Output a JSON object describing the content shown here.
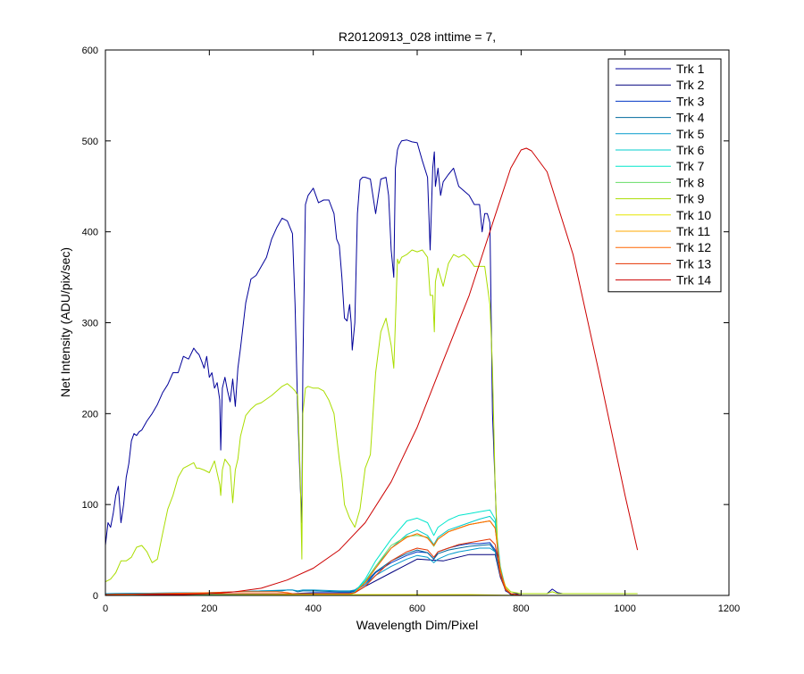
{
  "chart_data": {
    "type": "line",
    "title": "R20120913_028 inttime = 7,",
    "xlabel": "Wavelength Dim/Pixel",
    "ylabel": "Net Intensity (ADU/pix/sec)",
    "xlim": [
      0,
      1200
    ],
    "ylim": [
      0,
      600
    ],
    "xticks": [
      0,
      200,
      400,
      600,
      800,
      1000,
      1200
    ],
    "yticks": [
      0,
      100,
      200,
      300,
      400,
      500,
      600
    ],
    "legend_position": "top-right",
    "series": [
      {
        "name": "Trk 1",
        "color": "#000099",
        "x": [
          0,
          5,
          10,
          15,
          20,
          25,
          30,
          35,
          40,
          45,
          50,
          55,
          60,
          65,
          70,
          80,
          90,
          100,
          110,
          120,
          130,
          140,
          150,
          160,
          170,
          175,
          180,
          185,
          190,
          195,
          200,
          205,
          210,
          215,
          220,
          222,
          225,
          230,
          235,
          240,
          245,
          250,
          255,
          260,
          270,
          280,
          290,
          300,
          310,
          320,
          330,
          340,
          350,
          360,
          365,
          370,
          375,
          378,
          380,
          385,
          390,
          400,
          410,
          420,
          430,
          440,
          445,
          450,
          455,
          460,
          465,
          470,
          473,
          475,
          480,
          485,
          490,
          495,
          500,
          510,
          520,
          530,
          540,
          545,
          550,
          555,
          558,
          562,
          565,
          570,
          580,
          590,
          600,
          610,
          620,
          625,
          630,
          633,
          635,
          640,
          645,
          650,
          660,
          670,
          680,
          690,
          700,
          710,
          720,
          725,
          730,
          735,
          740,
          745,
          750,
          755,
          760,
          765,
          770,
          780,
          800,
          820,
          850,
          860,
          870,
          880,
          900,
          950,
          1000,
          1024
        ],
        "y": [
          55,
          80,
          75,
          90,
          110,
          120,
          80,
          100,
          130,
          145,
          170,
          178,
          176,
          180,
          182,
          192,
          200,
          210,
          223,
          232,
          245,
          245,
          263,
          260,
          272,
          268,
          265,
          258,
          250,
          263,
          240,
          245,
          228,
          234,
          215,
          160,
          228,
          240,
          225,
          213,
          238,
          208,
          250,
          272,
          322,
          348,
          352,
          362,
          372,
          392,
          405,
          415,
          412,
          398,
          320,
          205,
          120,
          80,
          250,
          430,
          440,
          448,
          432,
          435,
          435,
          420,
          392,
          385,
          350,
          305,
          302,
          320,
          300,
          270,
          300,
          420,
          457,
          460,
          460,
          458,
          420,
          458,
          460,
          440,
          380,
          350,
          470,
          490,
          495,
          500,
          501,
          499,
          498,
          478,
          460,
          380,
          470,
          488,
          450,
          470,
          440,
          455,
          463,
          470,
          450,
          445,
          440,
          430,
          430,
          400,
          420,
          420,
          410,
          200,
          120,
          40,
          28,
          15,
          5,
          2,
          2,
          2,
          2,
          7,
          3,
          2,
          2,
          2,
          2,
          2
        ]
      },
      {
        "name": "Trk 2",
        "color": "#00007f",
        "x": [
          0,
          200,
          350,
          360,
          400,
          450,
          470,
          480,
          500,
          550,
          600,
          650,
          700,
          750,
          760,
          770,
          780,
          800,
          900,
          1024
        ],
        "y": [
          0,
          1,
          1,
          1,
          2,
          2,
          2,
          3,
          10,
          25,
          40,
          38,
          45,
          45,
          20,
          6,
          1,
          0,
          0,
          0
        ]
      },
      {
        "name": "Trk 3",
        "color": "#0035c4",
        "x": [
          0,
          200,
          350,
          360,
          400,
          450,
          470,
          480,
          500,
          520,
          550,
          580,
          600,
          620,
          632,
          640,
          660,
          680,
          700,
          720,
          740,
          750,
          760,
          770,
          780,
          800,
          900,
          1024
        ],
        "y": [
          2,
          2,
          2,
          2,
          3,
          3,
          3,
          5,
          12,
          25,
          36,
          44,
          48,
          47,
          40,
          48,
          52,
          55,
          57,
          57,
          58,
          50,
          22,
          6,
          2,
          0,
          0,
          0
        ]
      },
      {
        "name": "Trk 4",
        "color": "#00699d",
        "x": [
          0,
          200,
          300,
          340,
          350,
          360,
          370,
          380,
          400,
          450,
          465,
          470,
          480,
          500,
          520,
          550,
          580,
          600,
          620,
          632,
          640,
          660,
          680,
          700,
          720,
          740,
          750,
          760,
          770,
          780,
          800,
          900,
          1024
        ],
        "y": [
          2,
          3,
          5,
          5,
          6,
          6,
          4,
          5,
          5,
          4,
          4,
          4,
          6,
          14,
          26,
          38,
          46,
          50,
          47,
          40,
          46,
          50,
          52,
          54,
          55,
          56,
          48,
          22,
          6,
          2,
          0,
          0,
          0
        ]
      },
      {
        "name": "Trk 5",
        "color": "#0099cc",
        "x": [
          0,
          200,
          300,
          350,
          360,
          370,
          380,
          400,
          450,
          470,
          480,
          500,
          520,
          550,
          580,
          600,
          620,
          632,
          640,
          660,
          680,
          700,
          720,
          740,
          750,
          760,
          770,
          780,
          800,
          900,
          1024
        ],
        "y": [
          2,
          3,
          5,
          6,
          6,
          5,
          6,
          6,
          5,
          5,
          6,
          12,
          22,
          32,
          40,
          44,
          42,
          36,
          40,
          45,
          48,
          50,
          52,
          52,
          48,
          22,
          6,
          2,
          0,
          0,
          0
        ]
      },
      {
        "name": "Trk 6",
        "color": "#00cccc",
        "x": [
          0,
          200,
          350,
          400,
          450,
          470,
          480,
          500,
          520,
          550,
          580,
          600,
          620,
          632,
          640,
          660,
          680,
          700,
          720,
          740,
          750,
          760,
          770,
          780,
          800,
          900,
          1024
        ],
        "y": [
          1,
          2,
          2,
          2,
          2,
          2,
          4,
          16,
          32,
          52,
          67,
          72,
          66,
          56,
          64,
          72,
          76,
          80,
          84,
          87,
          80,
          30,
          8,
          2,
          0,
          0,
          0
        ]
      },
      {
        "name": "Trk 7",
        "color": "#00e5cc",
        "x": [
          0,
          200,
          350,
          400,
          450,
          470,
          480,
          500,
          520,
          550,
          580,
          600,
          620,
          632,
          640,
          660,
          680,
          700,
          720,
          740,
          750,
          760,
          770,
          780,
          800,
          900,
          1024
        ],
        "y": [
          1,
          2,
          2,
          2,
          2,
          2,
          4,
          18,
          38,
          62,
          82,
          85,
          80,
          66,
          75,
          83,
          88,
          90,
          92,
          94,
          84,
          32,
          8,
          2,
          0,
          0,
          0
        ]
      },
      {
        "name": "Trk 8",
        "color": "#66dd66",
        "x": [
          0,
          200,
          350,
          400,
          450,
          470,
          480,
          500,
          520,
          550,
          580,
          600,
          620,
          632,
          640,
          660,
          680,
          700,
          720,
          740,
          750,
          760,
          770,
          780,
          800,
          900,
          1024
        ],
        "y": [
          0,
          1,
          1,
          1,
          1,
          1,
          3,
          15,
          32,
          55,
          65,
          66,
          64,
          54,
          62,
          70,
          74,
          78,
          80,
          82,
          74,
          28,
          8,
          2,
          0,
          0,
          0
        ]
      },
      {
        "name": "Trk 9",
        "color": "#aadd00",
        "x": [
          0,
          10,
          20,
          30,
          40,
          50,
          60,
          70,
          80,
          90,
          100,
          110,
          120,
          130,
          140,
          150,
          160,
          170,
          175,
          180,
          190,
          200,
          210,
          220,
          222,
          225,
          230,
          240,
          245,
          250,
          255,
          260,
          270,
          280,
          290,
          300,
          320,
          340,
          350,
          360,
          365,
          370,
          375,
          378,
          380,
          385,
          390,
          400,
          410,
          420,
          430,
          440,
          445,
          450,
          455,
          460,
          470,
          480,
          490,
          500,
          510,
          520,
          530,
          540,
          550,
          555,
          558,
          562,
          565,
          570,
          580,
          590,
          600,
          610,
          620,
          625,
          630,
          633,
          635,
          640,
          645,
          650,
          660,
          670,
          680,
          690,
          700,
          710,
          720,
          730,
          740,
          745,
          750,
          755,
          760,
          765,
          770,
          780,
          800,
          820,
          850,
          860,
          870,
          880,
          900,
          950,
          1000,
          1024
        ],
        "y": [
          15,
          18,
          25,
          38,
          38,
          42,
          53,
          55,
          48,
          36,
          40,
          68,
          95,
          110,
          130,
          140,
          143,
          146,
          140,
          140,
          138,
          135,
          148,
          122,
          110,
          138,
          150,
          142,
          102,
          138,
          150,
          175,
          198,
          205,
          210,
          212,
          220,
          230,
          233,
          228,
          225,
          220,
          130,
          40,
          200,
          228,
          230,
          228,
          228,
          225,
          215,
          200,
          175,
          150,
          130,
          100,
          85,
          75,
          95,
          140,
          155,
          245,
          290,
          305,
          275,
          250,
          300,
          370,
          365,
          372,
          375,
          380,
          378,
          380,
          372,
          330,
          330,
          290,
          345,
          360,
          350,
          340,
          365,
          375,
          372,
          375,
          370,
          362,
          362,
          362,
          320,
          250,
          120,
          50,
          30,
          18,
          10,
          4,
          2,
          2,
          2,
          4,
          2,
          2,
          2,
          2,
          2,
          2
        ]
      },
      {
        "name": "Trk 10",
        "color": "#e5e500",
        "x": [
          0,
          200,
          400,
          470,
          500,
          600,
          700,
          800,
          1024
        ],
        "y": [
          0,
          0,
          1,
          1,
          1,
          1,
          1,
          0,
          0
        ]
      },
      {
        "name": "Trk 11",
        "color": "#ffaa00",
        "x": [
          0,
          200,
          350,
          400,
          450,
          470,
          480,
          500,
          520,
          550,
          580,
          600,
          620,
          632,
          640,
          660,
          680,
          700,
          720,
          740,
          750,
          760,
          770,
          780,
          800,
          900,
          1024
        ],
        "y": [
          1,
          2,
          2,
          2,
          2,
          2,
          3,
          14,
          30,
          52,
          64,
          68,
          63,
          55,
          62,
          70,
          74,
          78,
          80,
          82,
          74,
          28,
          8,
          2,
          0,
          0,
          0
        ]
      },
      {
        "name": "Trk 12",
        "color": "#ff6600",
        "x": [
          0,
          100,
          200,
          250,
          300,
          330,
          350,
          360,
          400,
          450,
          470,
          480,
          500,
          520,
          550,
          580,
          600,
          620,
          632,
          640,
          660,
          680,
          700,
          720,
          740,
          750,
          760,
          770,
          780,
          800,
          900,
          1024
        ],
        "y": [
          1,
          2,
          3,
          4,
          4,
          4,
          3,
          2,
          2,
          2,
          2,
          3,
          14,
          30,
          52,
          64,
          68,
          63,
          55,
          62,
          70,
          74,
          78,
          80,
          82,
          74,
          28,
          8,
          2,
          0,
          0,
          0
        ]
      },
      {
        "name": "Trk 13",
        "color": "#e53300",
        "x": [
          0,
          200,
          350,
          400,
          450,
          470,
          480,
          500,
          520,
          550,
          580,
          600,
          620,
          632,
          640,
          660,
          680,
          700,
          720,
          740,
          750,
          760,
          770,
          780,
          800,
          900,
          1024
        ],
        "y": [
          1,
          2,
          2,
          2,
          2,
          2,
          3,
          10,
          22,
          38,
          48,
          52,
          50,
          42,
          48,
          52,
          56,
          58,
          60,
          62,
          56,
          22,
          6,
          2,
          0,
          0,
          0
        ]
      },
      {
        "name": "Trk 14",
        "color": "#cc0000",
        "x": [
          0,
          50,
          100,
          150,
          200,
          250,
          300,
          350,
          400,
          450,
          500,
          550,
          600,
          650,
          700,
          750,
          780,
          800,
          810,
          820,
          850,
          900,
          950,
          1000,
          1024
        ],
        "y": [
          0,
          0,
          1,
          1,
          2,
          4,
          8,
          17,
          30,
          50,
          80,
          125,
          185,
          258,
          330,
          418,
          470,
          490,
          492,
          489,
          466,
          375,
          245,
          110,
          50
        ]
      }
    ]
  }
}
